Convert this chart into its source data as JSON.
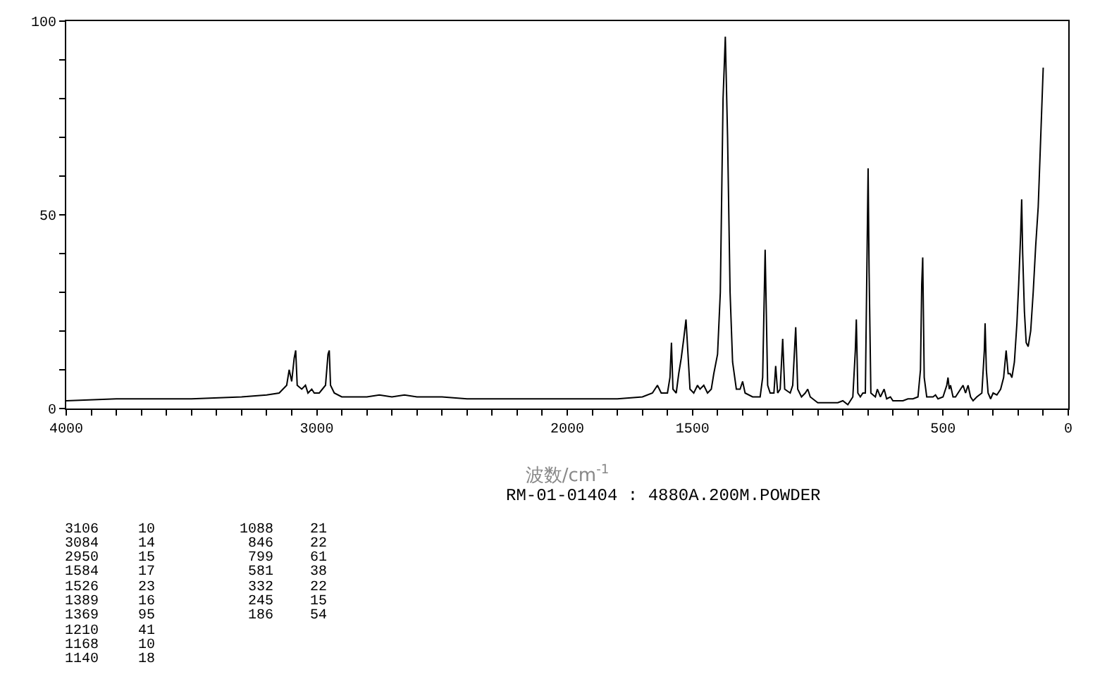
{
  "chart_data": {
    "type": "line",
    "xlabel": "波数/cm$^{-1}$",
    "annotations": [
      "RM-01-01404 : 4880A.200M.POWDER",
      "3106",
      "10",
      "3084",
      "14",
      "2950",
      "15",
      "1584",
      "17",
      "1526",
      "23",
      "1389",
      "16",
      "1369",
      "95",
      "1210",
      "41",
      "1168",
      "10",
      "1140",
      "18",
      "1088",
      "21",
      "846",
      "22",
      "799",
      "61",
      "581",
      "38",
      "332",
      "22",
      "245",
      "15",
      "186",
      "54"
    ],
    "series": [
      {
        "color": "#000000",
        "x": [
          4000,
          3800,
          3500,
          3300,
          3200,
          3150,
          3120,
          3110,
          3100,
          3090,
          3084,
          3078,
          3060,
          3045,
          3035,
          3020,
          3010,
          2990,
          2965,
          2955,
          2950,
          2945,
          2930,
          2900,
          2800,
          2750,
          2700,
          2650,
          2600,
          2500,
          2400,
          2200,
          2000,
          1800,
          1700,
          1660,
          1640,
          1625,
          1600,
          1590,
          1584,
          1578,
          1565,
          1555,
          1545,
          1535,
          1526,
          1518,
          1510,
          1495,
          1480,
          1470,
          1455,
          1440,
          1425,
          1415,
          1400,
          1389,
          1378,
          1369,
          1360,
          1350,
          1340,
          1325,
          1310,
          1300,
          1290,
          1260,
          1230,
          1220,
          1210,
          1200,
          1190,
          1175,
          1168,
          1160,
          1150,
          1140,
          1132,
          1110,
          1100,
          1088,
          1080,
          1065,
          1050,
          1040,
          1030,
          1000,
          950,
          920,
          900,
          880,
          860,
          850,
          846,
          840,
          830,
          820,
          810,
          799,
          795,
          788,
          770,
          762,
          750,
          735,
          725,
          710,
          700,
          680,
          660,
          640,
          620,
          600,
          590,
          585,
          581,
          575,
          565,
          540,
          530,
          520,
          500,
          485,
          480,
          475,
          470,
          460,
          450,
          430,
          420,
          410,
          400,
          390,
          380,
          365,
          345,
          335,
          332,
          327,
          320,
          310,
          300,
          285,
          270,
          258,
          248,
          240,
          232,
          225,
          215,
          205,
          198,
          190,
          186,
          182,
          175,
          168,
          160,
          150,
          140,
          130,
          120,
          110,
          100
        ],
        "values": [
          2,
          2.5,
          2.5,
          3,
          3.5,
          4,
          6,
          10,
          7,
          13,
          15,
          6,
          5,
          6,
          4,
          5,
          4,
          4,
          6,
          14,
          15,
          6,
          4,
          3,
          3,
          3.5,
          3,
          3.5,
          3,
          3,
          2.5,
          2.5,
          2.5,
          2.5,
          3,
          4,
          6,
          4,
          4,
          8,
          17,
          5,
          4,
          9,
          13,
          18,
          23,
          14,
          5,
          4,
          6,
          5,
          6,
          4,
          5,
          9,
          14,
          30,
          80,
          96,
          70,
          30,
          12,
          5,
          5,
          7,
          4,
          3,
          3,
          8,
          41,
          6,
          4,
          4,
          11,
          4,
          5,
          18,
          5,
          4,
          6,
          21,
          5,
          3,
          4,
          5,
          3,
          1.5,
          1.5,
          1.5,
          2,
          1,
          3,
          15,
          23,
          4,
          3,
          4,
          4,
          62,
          35,
          4,
          3,
          5,
          3,
          5,
          2.5,
          3,
          2,
          2,
          2,
          2.5,
          2.5,
          3,
          10,
          32,
          39,
          8,
          3,
          3,
          3.5,
          2.5,
          3,
          6,
          8,
          5,
          6,
          3,
          3,
          5,
          6,
          4,
          6,
          3,
          2,
          3,
          4,
          15,
          22,
          10,
          4,
          2.5,
          4,
          3.5,
          5,
          8,
          15,
          9,
          9,
          8,
          12,
          22,
          32,
          45,
          54,
          40,
          25,
          17,
          16,
          20,
          30,
          42,
          52,
          70,
          88
        ]
      }
    ],
    "xlim": [
      4000,
      0
    ],
    "xticks": [
      4000,
      {
        "value": 3900,
        "label": null
      },
      {
        "value": 3800,
        "label": null
      },
      {
        "value": 3700,
        "label": null
      },
      {
        "value": 3600,
        "label": null
      },
      {
        "value": 3500,
        "label": null
      },
      {
        "value": 3400,
        "label": null
      },
      {
        "value": 3300,
        "label": null
      },
      {
        "value": 3200,
        "label": null
      },
      {
        "value": 3100,
        "label": null
      },
      3000,
      {
        "value": 2900,
        "label": null
      },
      {
        "value": 2800,
        "label": null
      },
      {
        "value": 2700,
        "label": null
      },
      {
        "value": 2600,
        "label": null
      },
      {
        "value": 2500,
        "label": null
      },
      {
        "value": 2400,
        "label": null
      },
      {
        "value": 2300,
        "label": null
      },
      {
        "value": 2200,
        "label": null
      },
      {
        "value": 2100,
        "label": null
      },
      2000,
      {
        "value": 1900,
        "label": null
      },
      {
        "value": 1800,
        "label": null
      },
      {
        "value": 1700,
        "label": null
      },
      {
        "value": 1600,
        "label": null
      },
      1500,
      {
        "value": 1400,
        "label": null
      },
      {
        "value": 1300,
        "label": null
      },
      {
        "value": 1200,
        "label": null
      },
      {
        "value": 1100,
        "label": null
      },
      {
        "value": 1000,
        "label": null
      },
      {
        "value": 900,
        "label": null
      },
      {
        "value": 800,
        "label": null
      },
      {
        "value": 700,
        "label": null
      },
      {
        "value": 600,
        "label": null
      },
      500,
      {
        "value": 400,
        "label": null
      },
      {
        "value": 300,
        "label": null
      },
      {
        "value": 200,
        "label": null
      },
      {
        "value": 100,
        "label": null
      },
      0
    ],
    "ylim": [
      0,
      100
    ],
    "yticks": [
      0,
      {
        "value": 10,
        "label": null
      },
      {
        "value": 20,
        "label": null
      },
      {
        "value": 30,
        "label": null
      },
      {
        "value": 40,
        "label": null
      },
      50,
      {
        "value": 60,
        "label": null
      },
      {
        "value": 70,
        "label": null
      },
      {
        "value": 80,
        "label": null
      },
      {
        "value": 90,
        "label": null
      },
      100
    ],
    "marker": "none",
    "line_style": "solid"
  }
}
